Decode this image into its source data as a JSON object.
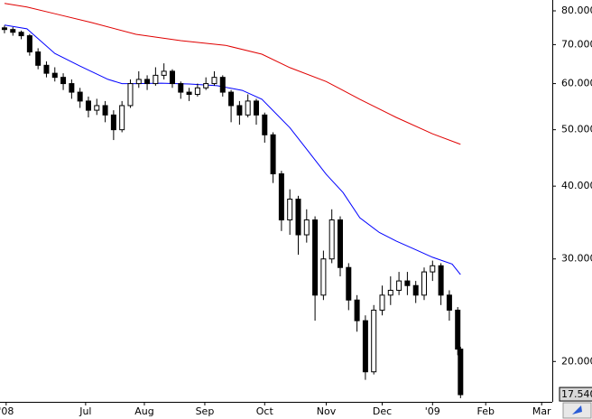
{
  "chart_data": {
    "type": "candlestick",
    "log_scale": true,
    "x": [
      0,
      3,
      6,
      9,
      12,
      15,
      18,
      21,
      24,
      27,
      30,
      33,
      36,
      39,
      42,
      45,
      48,
      51,
      54,
      57,
      60,
      63,
      66,
      69,
      72,
      75,
      78,
      81,
      84,
      87,
      90,
      93,
      96,
      99,
      102,
      105,
      108,
      111,
      114,
      117,
      120,
      123,
      126,
      129,
      132,
      135,
      138,
      141,
      144,
      147,
      150,
      153,
      156,
      159,
      162,
      163
    ],
    "open": [
      74.8,
      74.3,
      73.5,
      72.5,
      68,
      64.5,
      62.5,
      61.5,
      60,
      58,
      56,
      54,
      55,
      53,
      50,
      55,
      60,
      61,
      60,
      62,
      63,
      60,
      58,
      57.5,
      59,
      60,
      61.5,
      58,
      55,
      53,
      56,
      53,
      49,
      42,
      35,
      38,
      33,
      35,
      26,
      30,
      35,
      29,
      25.5,
      23.5,
      19.2,
      24.5,
      26,
      26.5,
      27.5,
      27,
      26,
      28.5,
      29.2,
      26,
      24.5,
      21
    ],
    "close": [
      74.3,
      73.5,
      72.5,
      68,
      64.5,
      62.5,
      61.5,
      60,
      58,
      56,
      54,
      55,
      53,
      50,
      55,
      60,
      61,
      60,
      62,
      63,
      60,
      58,
      57.5,
      59,
      60,
      61.5,
      58,
      55,
      53,
      56,
      53,
      49,
      42,
      35,
      38,
      33,
      35,
      26,
      30,
      35,
      29,
      25.5,
      23.5,
      19.2,
      24.5,
      26,
      26.5,
      27.5,
      27,
      26,
      28.5,
      29.2,
      26,
      24.5,
      21,
      17.54
    ],
    "high": [
      75.5,
      75,
      74,
      73,
      69,
      65.5,
      64,
      62.5,
      61,
      59,
      57,
      56.5,
      56,
      54,
      56,
      61,
      63,
      62,
      64,
      65,
      63.5,
      60.5,
      59,
      60,
      61.5,
      63,
      62,
      58.5,
      56,
      57.5,
      56.5,
      53.5,
      49.5,
      42.5,
      39.5,
      38.5,
      36.5,
      35.5,
      31,
      36.5,
      35.5,
      29.5,
      26,
      24,
      25,
      27,
      28,
      28.5,
      28.5,
      27.5,
      29,
      29.8,
      29.5,
      26.5,
      24.8,
      21.2
    ],
    "low": [
      73.2,
      72.5,
      71.5,
      67,
      63.5,
      61.5,
      60.5,
      58.5,
      56.5,
      54.5,
      52.5,
      53,
      51.5,
      48,
      49.5,
      54.5,
      59,
      58.5,
      59.5,
      61,
      59,
      56.5,
      56,
      57,
      58.5,
      59.5,
      57,
      51.5,
      51,
      52.5,
      51,
      47.5,
      40.5,
      33.5,
      33,
      30.5,
      32,
      23.5,
      25.5,
      29.5,
      28,
      24.5,
      22.5,
      18.6,
      19,
      24,
      25,
      26,
      26,
      25.2,
      25.5,
      27.5,
      25,
      23.5,
      20.5,
      17.3
    ],
    "series": [
      {
        "color": "#0000ff",
        "x": [
          0,
          8,
          18,
          27,
          37,
          42,
          47,
          56,
          66,
          76,
          85,
          92,
          102,
          108,
          115,
          121,
          127,
          134,
          140,
          147,
          153,
          160,
          163
        ],
        "values": [
          75.6,
          74.5,
          67.6,
          64.3,
          61.0,
          60.0,
          60.0,
          60.1,
          59.9,
          59.5,
          58.4,
          56.4,
          50.4,
          46.3,
          41.9,
          39.0,
          35.3,
          33.3,
          32.2,
          31.1,
          30.2,
          29.4,
          28.2
        ]
      },
      {
        "color": "#e00000",
        "x": [
          0,
          8,
          18,
          31,
          47,
          63,
          79,
          92,
          102,
          115,
          127,
          140,
          153,
          163
        ],
        "values": [
          82.4,
          81.2,
          79.1,
          76.4,
          72.9,
          71.1,
          69.8,
          67.4,
          63.9,
          60.5,
          56.4,
          52.5,
          49.2,
          47.2
        ]
      }
    ],
    "xlim": [
      -1.6,
      195.8
    ],
    "xticks": [
      {
        "value": 0.6,
        "label": "'08"
      },
      {
        "value": 29,
        "label": "Jul"
      },
      {
        "value": 50,
        "label": "Aug"
      },
      {
        "value": 71.6,
        "label": "Sep"
      },
      {
        "value": 93,
        "label": "Oct"
      },
      {
        "value": 115,
        "label": "Nov"
      },
      {
        "value": 135,
        "label": "Dec"
      },
      {
        "value": 153,
        "label": "'09"
      },
      {
        "value": 172,
        "label": "Feb"
      },
      {
        "value": 192,
        "label": "Mar"
      }
    ],
    "ylim": [
      17.05,
      83.5
    ],
    "yticks": [
      {
        "value": 20,
        "label": "20.000"
      },
      {
        "value": 30,
        "label": "30.000"
      },
      {
        "value": 40,
        "label": "40.000"
      },
      {
        "value": 50,
        "label": "50.000"
      },
      {
        "value": 60,
        "label": "60.000"
      },
      {
        "value": 70,
        "label": "70.000"
      },
      {
        "value": 80,
        "label": "80.000"
      }
    ],
    "last_price": {
      "value": 17.54,
      "label": "17.540"
    }
  }
}
